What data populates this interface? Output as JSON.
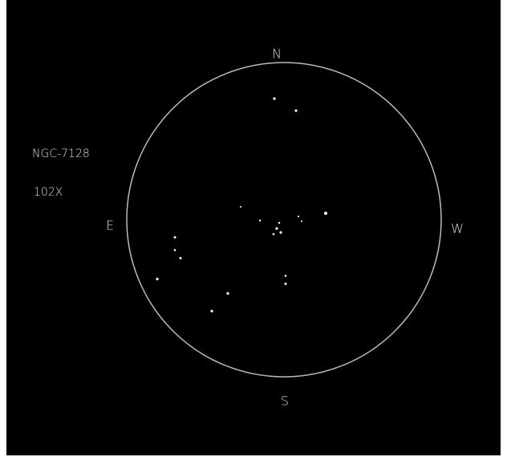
{
  "compass": {
    "north": "N",
    "south": "S",
    "east": "E",
    "west": "W"
  },
  "object": "NGC-7128",
  "magnification": "102X"
}
